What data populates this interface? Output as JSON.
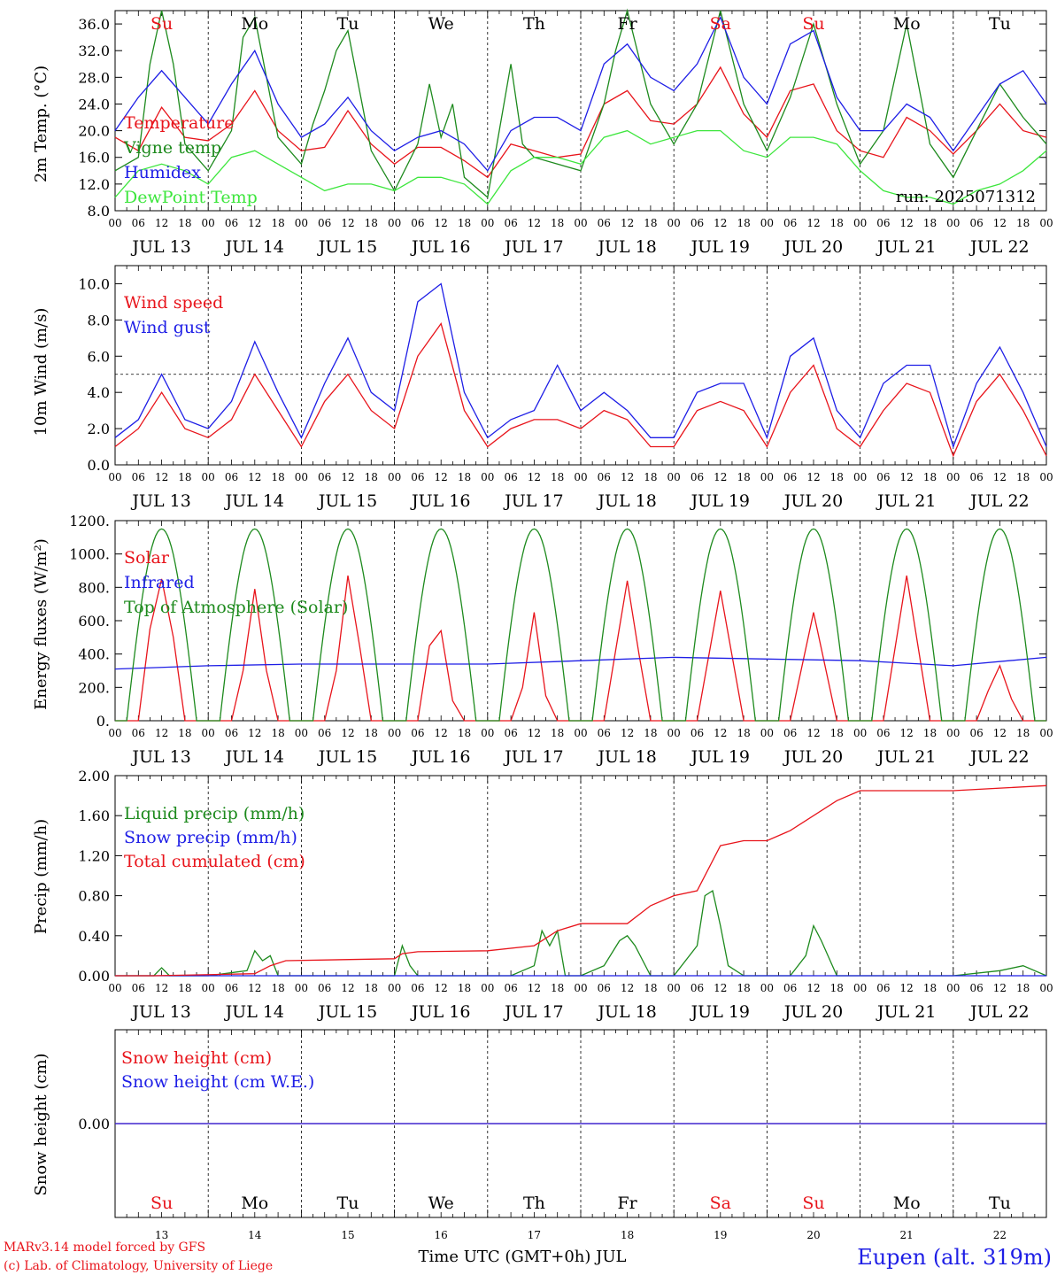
{
  "footer": {
    "model": "MARv3.14 model forced by GFS",
    "credit": "(c) Lab. of Climatology, University of Liege",
    "xlabel": "Time UTC (GMT+0h) JUL",
    "station": "Eupen (alt. 319m)"
  },
  "days": {
    "names": [
      "Su",
      "Mo",
      "Tu",
      "We",
      "Th",
      "Fr",
      "Sa",
      "Su",
      "Mo",
      "Tu"
    ],
    "weekend": [
      true,
      false,
      false,
      false,
      false,
      false,
      true,
      true,
      false,
      false
    ],
    "dates": [
      "JUL 13",
      "JUL 14",
      "JUL 15",
      "JUL 16",
      "JUL 17",
      "JUL 18",
      "JUL 19",
      "JUL 20",
      "JUL 21",
      "JUL 22"
    ],
    "nums": [
      "13",
      "14",
      "15",
      "16",
      "17",
      "18",
      "19",
      "20",
      "21",
      "22"
    ],
    "hours": [
      "00",
      "06",
      "12",
      "18"
    ],
    "end_hour": "00"
  },
  "colors": {
    "red": "#e8141b",
    "green": "#1d8a1d",
    "blue": "#1e1ee6",
    "light_green": "#3de63d"
  },
  "chart_data": [
    {
      "type": "line",
      "ylabel": "2m Temp. (°C)",
      "ylim": [
        8,
        38
      ],
      "yticks": [
        "8.0",
        "12.0",
        "16.0",
        "20.0",
        "24.0",
        "28.0",
        "32.0",
        "36.0"
      ],
      "run_label": "run: 2025071312",
      "x_unit": "hours since JUL 13 00 UTC",
      "series": [
        {
          "name": "Temperature",
          "color": "#e8141b",
          "x": [
            0,
            6,
            12,
            18,
            24,
            30,
            36,
            42,
            48,
            54,
            60,
            66,
            72,
            78,
            84,
            90,
            96,
            102,
            108,
            114,
            120,
            126,
            132,
            138,
            144,
            150,
            156,
            162,
            168,
            174,
            180,
            186,
            192,
            198,
            204,
            210,
            216,
            222,
            228,
            234,
            240
          ],
          "y": [
            19,
            17,
            23.5,
            19,
            18.5,
            21,
            26,
            20,
            17,
            17.5,
            23,
            18,
            15,
            17.5,
            17.5,
            15.5,
            13,
            18,
            17,
            16,
            16.5,
            24,
            26,
            21.5,
            21,
            24,
            29.5,
            22.5,
            19,
            26,
            27,
            20,
            17,
            16,
            22,
            20,
            16.5,
            20,
            24,
            20,
            19
          ]
        },
        {
          "name": "Vigne temp",
          "color": "#1d8a1d",
          "x": [
            0,
            6,
            9,
            12,
            15,
            18,
            24,
            30,
            33,
            36,
            39,
            42,
            48,
            51,
            54,
            57,
            60,
            66,
            72,
            78,
            81,
            84,
            87,
            90,
            96,
            99,
            102,
            105,
            108,
            114,
            120,
            126,
            129,
            132,
            138,
            144,
            150,
            156,
            162,
            168,
            174,
            180,
            186,
            192,
            198,
            204,
            210,
            216,
            222,
            228,
            234,
            240
          ],
          "y": [
            14,
            16,
            30,
            38,
            30,
            18,
            14,
            20,
            34,
            37,
            28,
            19,
            15,
            21,
            26,
            32,
            35,
            17,
            11,
            18,
            27,
            19,
            24,
            13,
            10,
            20,
            30,
            18,
            16,
            15,
            14,
            24,
            32,
            38,
            24,
            18,
            24,
            38,
            24,
            17,
            25,
            36,
            24,
            15,
            20,
            36,
            18,
            13,
            20,
            27,
            22,
            18
          ]
        },
        {
          "name": "Humidex",
          "color": "#1e1ee6",
          "x": [
            0,
            6,
            12,
            18,
            24,
            30,
            36,
            42,
            48,
            54,
            60,
            66,
            72,
            78,
            84,
            90,
            96,
            102,
            108,
            114,
            120,
            126,
            132,
            138,
            144,
            150,
            156,
            162,
            168,
            174,
            180,
            186,
            192,
            198,
            204,
            210,
            216,
            222,
            228,
            234,
            240
          ],
          "y": [
            20,
            25,
            29,
            25,
            21,
            27,
            32,
            24,
            19,
            21,
            25,
            20,
            17,
            19,
            20,
            18,
            14,
            20,
            22,
            22,
            20,
            30,
            33,
            28,
            26,
            30,
            37,
            28,
            24,
            33,
            35,
            25,
            20,
            20,
            24,
            22,
            17,
            22,
            27,
            29,
            24
          ]
        },
        {
          "name": "DewPoint Temp",
          "color": "#3de63d",
          "x": [
            0,
            6,
            12,
            18,
            24,
            30,
            36,
            42,
            48,
            54,
            60,
            66,
            72,
            78,
            84,
            90,
            96,
            102,
            108,
            114,
            120,
            126,
            132,
            138,
            144,
            150,
            156,
            162,
            168,
            174,
            180,
            186,
            192,
            198,
            204,
            210,
            216,
            222,
            228,
            234,
            240
          ],
          "y": [
            10,
            14,
            15,
            14,
            12,
            16,
            17,
            15,
            13,
            11,
            12,
            12,
            11,
            13,
            13,
            12,
            9,
            14,
            16,
            16,
            15,
            19,
            20,
            18,
            19,
            20,
            20,
            17,
            16,
            19,
            19,
            18,
            14,
            11,
            10,
            10,
            9,
            11,
            12,
            14,
            17
          ]
        }
      ]
    },
    {
      "type": "line",
      "ylabel": "10m Wind (m/s)",
      "ylim": [
        0,
        11
      ],
      "yticks": [
        "0.0",
        "2.0",
        "4.0",
        "6.0",
        "8.0",
        "10.0"
      ],
      "reference_line": 5,
      "series": [
        {
          "name": "Wind speed",
          "color": "#e8141b",
          "x": [
            0,
            6,
            12,
            18,
            24,
            30,
            36,
            42,
            48,
            54,
            60,
            66,
            72,
            78,
            84,
            90,
            96,
            102,
            108,
            114,
            120,
            126,
            132,
            138,
            144,
            150,
            156,
            162,
            168,
            174,
            180,
            186,
            192,
            198,
            204,
            210,
            216,
            222,
            228,
            234,
            240
          ],
          "y": [
            1,
            2,
            4,
            2,
            1.5,
            2.5,
            5,
            3,
            1,
            3.5,
            5,
            3,
            2,
            6,
            7.8,
            3,
            1,
            2,
            2.5,
            2.5,
            2,
            3,
            2.5,
            1,
            1,
            3,
            3.5,
            3,
            1,
            4,
            5.5,
            2,
            1,
            3,
            4.5,
            4,
            0.5,
            3.5,
            5,
            3,
            0.5
          ]
        },
        {
          "name": "Wind gust",
          "color": "#1e1ee6",
          "x": [
            0,
            6,
            12,
            18,
            24,
            30,
            36,
            42,
            48,
            54,
            60,
            66,
            72,
            78,
            84,
            90,
            96,
            102,
            108,
            114,
            120,
            126,
            132,
            138,
            144,
            150,
            156,
            162,
            168,
            174,
            180,
            186,
            192,
            198,
            204,
            210,
            216,
            222,
            228,
            234,
            240
          ],
          "y": [
            1.5,
            2.5,
            5,
            2.5,
            2,
            3.5,
            6.8,
            4,
            1.5,
            4.5,
            7,
            4,
            3,
            9,
            10,
            4,
            1.5,
            2.5,
            3,
            5.5,
            3,
            4,
            3,
            1.5,
            1.5,
            4,
            4.5,
            4.5,
            1.5,
            6,
            7,
            3,
            1.5,
            4.5,
            5.5,
            5.5,
            1,
            4.5,
            6.5,
            4,
            1
          ]
        }
      ]
    },
    {
      "type": "line",
      "ylabel": "Energy fluxes (W/m²)",
      "ylim": [
        0,
        1200
      ],
      "yticks": [
        "0.",
        "200.",
        "400.",
        "600.",
        "800.",
        "1000.",
        "1200."
      ],
      "series": [
        {
          "name": "Solar",
          "color": "#e8141b",
          "x": [
            0,
            6,
            9,
            12,
            15,
            18,
            24,
            30,
            33,
            36,
            39,
            42,
            48,
            54,
            57,
            60,
            63,
            66,
            72,
            78,
            81,
            84,
            87,
            90,
            96,
            102,
            105,
            108,
            111,
            114,
            120,
            126,
            129,
            132,
            135,
            138,
            144,
            150,
            156,
            162,
            168,
            174,
            180,
            186,
            192,
            198,
            204,
            210,
            216,
            222,
            225,
            228,
            231,
            234,
            240
          ],
          "y": [
            0,
            0,
            550,
            850,
            500,
            0,
            0,
            0,
            300,
            790,
            300,
            0,
            0,
            0,
            300,
            870,
            450,
            0,
            0,
            0,
            450,
            540,
            120,
            0,
            0,
            0,
            200,
            650,
            150,
            0,
            0,
            0,
            420,
            840,
            400,
            0,
            0,
            0,
            780,
            0,
            0,
            0,
            650,
            0,
            0,
            0,
            870,
            0,
            0,
            0,
            180,
            330,
            130,
            0,
            0
          ]
        },
        {
          "name": "Infrared",
          "color": "#1e1ee6",
          "x": [
            0,
            24,
            48,
            72,
            96,
            120,
            144,
            168,
            192,
            216,
            240
          ],
          "y": [
            310,
            330,
            340,
            340,
            340,
            360,
            380,
            370,
            360,
            330,
            380
          ]
        },
        {
          "name": "Top of Atmosphere (Solar)",
          "color": "#1d8a1d",
          "shape": "daily sine, peak 1150 at 12 UTC, zero before 03 and after 21 UTC"
        }
      ]
    },
    {
      "type": "line",
      "ylabel": "Precip (mm/h)",
      "ylim": [
        0,
        2
      ],
      "yticks": [
        "0.00",
        "0.40",
        "0.80",
        "1.20",
        "1.60",
        "2.00"
      ],
      "series": [
        {
          "name": "Liquid precip (mm/h)",
          "color": "#1d8a1d",
          "x": [
            0,
            10,
            12,
            14,
            24,
            34,
            36,
            38,
            40,
            42,
            48,
            72,
            74,
            76,
            78,
            96,
            102,
            108,
            110,
            112,
            114,
            116,
            120,
            126,
            130,
            132,
            134,
            138,
            144,
            150,
            152,
            154,
            156,
            158,
            162,
            174,
            178,
            180,
            182,
            186,
            192,
            216,
            228,
            234,
            240
          ],
          "y": [
            0,
            0,
            0.08,
            0,
            0,
            0.05,
            0.25,
            0.15,
            0.2,
            0,
            0,
            0,
            0.3,
            0.1,
            0,
            0,
            0,
            0.1,
            0.45,
            0.3,
            0.45,
            0,
            0,
            0.1,
            0.35,
            0.4,
            0.3,
            0,
            0,
            0.3,
            0.8,
            0.85,
            0.5,
            0.1,
            0,
            0,
            0.2,
            0.5,
            0.35,
            0,
            0,
            0,
            0.05,
            0.1,
            0
          ]
        },
        {
          "name": "Snow precip (mm/h)",
          "color": "#1e1ee6",
          "x": [
            0,
            240
          ],
          "y": [
            0,
            0
          ]
        },
        {
          "name": "Total cumulated (cm)",
          "color": "#e8141b",
          "x": [
            0,
            10,
            36,
            40,
            44,
            72,
            74,
            78,
            96,
            108,
            114,
            120,
            132,
            138,
            144,
            150,
            156,
            162,
            168,
            174,
            186,
            192,
            216,
            240
          ],
          "y": [
            0,
            0,
            0.02,
            0.1,
            0.15,
            0.17,
            0.22,
            0.24,
            0.25,
            0.3,
            0.45,
            0.52,
            0.52,
            0.7,
            0.8,
            0.85,
            1.3,
            1.35,
            1.35,
            1.45,
            1.75,
            1.85,
            1.85,
            1.9
          ]
        }
      ]
    },
    {
      "type": "line",
      "ylabel": "Snow height (cm)",
      "yticks": [
        "0.00"
      ],
      "series": [
        {
          "name": "Snow height (cm)",
          "color": "#e8141b",
          "x": [
            0,
            240
          ],
          "y": [
            0,
            0
          ]
        },
        {
          "name": "Snow height (cm W.E.)",
          "color": "#1e1ee6",
          "x": [
            0,
            240
          ],
          "y": [
            0,
            0
          ]
        }
      ]
    }
  ]
}
